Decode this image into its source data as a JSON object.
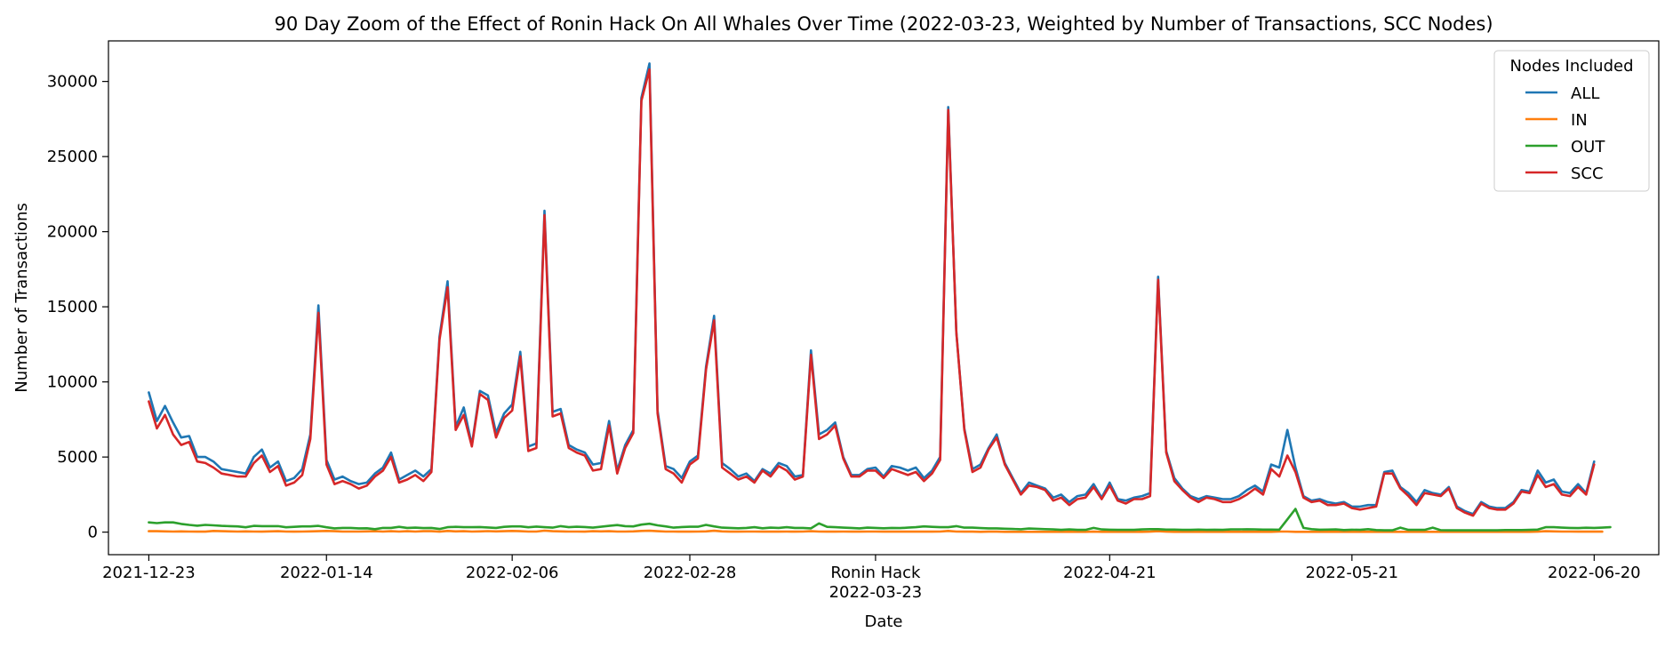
{
  "chart_data": {
    "type": "line",
    "title": "90 Day Zoom of the Effect of Ronin Hack On All Whales Over Time (2022-03-23, Weighted by Number of Transactions, SCC Nodes)",
    "xlabel": "Date",
    "ylabel": "Number of Transactions",
    "x_start": "2021-12-23",
    "x_end": "2022-06-20",
    "xlim": [
      "2021-12-18",
      "2022-06-28"
    ],
    "ylim": [
      -1500,
      32700
    ],
    "x_ticks": [
      {
        "date": "2021-12-23",
        "label": "2021-12-23"
      },
      {
        "date": "2022-01-14",
        "label": "2022-01-14"
      },
      {
        "date": "2022-02-06",
        "label": "2022-02-06"
      },
      {
        "date": "2022-02-28",
        "label": "2022-02-28"
      },
      {
        "date": "2022-03-23",
        "label": "Ronin Hack\n2022-03-23"
      },
      {
        "date": "2022-04-21",
        "label": "2022-04-21"
      },
      {
        "date": "2022-05-21",
        "label": "2022-05-21"
      },
      {
        "date": "2022-06-20",
        "label": "2022-06-20"
      }
    ],
    "y_ticks": [
      0,
      5000,
      10000,
      15000,
      20000,
      25000,
      30000
    ],
    "grid": false,
    "legend": {
      "title": "Nodes Included",
      "placement": "top-right"
    },
    "series": [
      {
        "name": "ALL",
        "color": "#1f77b4",
        "values": [
          9300,
          7400,
          8400,
          7300,
          6300,
          6400,
          5000,
          5000,
          4700,
          4200,
          4100,
          4000,
          3900,
          5000,
          5500,
          4300,
          4700,
          3400,
          3600,
          4200,
          6500,
          15100,
          4800,
          3500,
          3700,
          3400,
          3200,
          3300,
          3900,
          4300,
          5300,
          3500,
          3800,
          4100,
          3700,
          4200,
          13000,
          16700,
          7000,
          8300,
          5800,
          9400,
          9100,
          6600,
          7900,
          8500,
          12000,
          5700,
          5900,
          21400,
          8000,
          8200,
          5800,
          5500,
          5300,
          4500,
          4600,
          7400,
          4100,
          5800,
          6800,
          28900,
          31200,
          8100,
          4400,
          4200,
          3600,
          4700,
          5100,
          11000,
          14400,
          4600,
          4200,
          3700,
          3900,
          3400,
          4200,
          3900,
          4600,
          4400,
          3700,
          3800,
          12100,
          6500,
          6800,
          7300,
          5000,
          3800,
          3800,
          4200,
          4300,
          3700,
          4400,
          4300,
          4100,
          4300,
          3600,
          4100,
          5000,
          28300,
          13300,
          6900,
          4200,
          4500,
          5600,
          6500,
          4600,
          3600,
          2600,
          3300,
          3100,
          2900,
          2300,
          2500,
          2000,
          2400,
          2500,
          3200,
          2300,
          3300,
          2200,
          2100,
          2300,
          2400,
          2600,
          17000,
          5400,
          3600,
          2900,
          2400,
          2200,
          2400,
          2300,
          2200,
          2200,
          2400,
          2800,
          3100,
          2700,
          4500,
          4300,
          6800,
          4300,
          2400,
          2100,
          2200,
          2000,
          1900,
          2000,
          1700,
          1700,
          1800,
          1800,
          4000,
          4100,
          3000,
          2600,
          2000,
          2800,
          2600,
          2500,
          3000,
          1700,
          1400,
          1200,
          2000,
          1700,
          1600,
          1600,
          2000,
          2800,
          2700,
          4100,
          3300,
          3500,
          2700,
          2600,
          3200,
          2600,
          4700
        ]
      },
      {
        "name": "IN",
        "color": "#ff7f0e",
        "values": [
          60,
          60,
          50,
          40,
          50,
          40,
          30,
          30,
          80,
          60,
          50,
          40,
          50,
          40,
          30,
          50,
          60,
          40,
          30,
          40,
          50,
          60,
          80,
          60,
          40,
          40,
          40,
          50,
          60,
          40,
          60,
          40,
          60,
          40,
          60,
          60,
          30,
          80,
          50,
          60,
          40,
          50,
          70,
          50,
          60,
          80,
          60,
          40,
          40,
          100,
          60,
          50,
          40,
          40,
          30,
          60,
          50,
          60,
          40,
          40,
          50,
          80,
          90,
          60,
          40,
          40,
          30,
          30,
          40,
          50,
          90,
          50,
          30,
          30,
          40,
          40,
          30,
          30,
          30,
          40,
          30,
          40,
          60,
          40,
          30,
          30,
          40,
          30,
          30,
          40,
          40,
          30,
          30,
          30,
          30,
          30,
          30,
          30,
          40,
          80,
          40,
          30,
          30,
          20,
          30,
          30,
          20,
          20,
          20,
          20,
          20,
          20,
          20,
          20,
          20,
          20,
          20,
          30,
          20,
          20,
          20,
          20,
          20,
          20,
          30,
          60,
          30,
          20,
          20,
          20,
          20,
          20,
          20,
          20,
          20,
          20,
          20,
          20,
          20,
          20,
          40,
          40,
          20,
          20,
          20,
          20,
          20,
          20,
          20,
          20,
          20,
          20,
          20,
          20,
          20,
          20,
          20,
          20,
          20,
          20,
          20,
          20,
          20,
          20,
          20,
          20,
          20,
          20,
          20,
          20,
          20,
          20,
          30,
          60,
          50,
          40,
          40,
          30,
          30,
          30,
          30
        ]
      },
      {
        "name": "OUT",
        "color": "#2ca02c",
        "values": [
          650,
          600,
          650,
          650,
          550,
          480,
          430,
          480,
          450,
          420,
          400,
          380,
          320,
          420,
          400,
          400,
          400,
          320,
          350,
          380,
          380,
          420,
          320,
          250,
          280,
          280,
          250,
          260,
          200,
          280,
          280,
          350,
          280,
          300,
          270,
          280,
          210,
          330,
          350,
          330,
          330,
          340,
          310,
          280,
          350,
          380,
          380,
          320,
          370,
          330,
          300,
          400,
          330,
          360,
          340,
          300,
          360,
          420,
          470,
          400,
          380,
          500,
          560,
          450,
          380,
          300,
          340,
          360,
          360,
          480,
          380,
          300,
          280,
          260,
          280,
          330,
          260,
          300,
          280,
          330,
          280,
          280,
          250,
          580,
          350,
          330,
          300,
          280,
          250,
          300,
          280,
          260,
          280,
          270,
          300,
          330,
          380,
          350,
          330,
          330,
          400,
          300,
          300,
          270,
          250,
          250,
          230,
          210,
          190,
          240,
          220,
          200,
          180,
          150,
          180,
          150,
          150,
          280,
          180,
          160,
          150,
          150,
          150,
          180,
          200,
          200,
          170,
          170,
          150,
          150,
          170,
          150,
          160,
          150,
          180,
          180,
          190,
          180,
          170,
          170,
          160,
          850,
          1550,
          280,
          200,
          160,
          170,
          180,
          140,
          160,
          150,
          200,
          140,
          120,
          120,
          300,
          150,
          150,
          150,
          300,
          130,
          120,
          120,
          120,
          120,
          120,
          120,
          120,
          140,
          140,
          140,
          150,
          170,
          330,
          330,
          300,
          280,
          270,
          290,
          280,
          300,
          330
        ]
      },
      {
        "name": "SCC",
        "color": "#d62728",
        "values": [
          8700,
          6900,
          7800,
          6500,
          5800,
          6000,
          4700,
          4600,
          4300,
          3900,
          3800,
          3700,
          3700,
          4600,
          5100,
          4000,
          4400,
          3100,
          3300,
          3800,
          6200,
          14600,
          4500,
          3200,
          3400,
          3200,
          2900,
          3100,
          3700,
          4100,
          5000,
          3300,
          3500,
          3800,
          3400,
          4000,
          12800,
          16300,
          6800,
          7800,
          5700,
          9200,
          8800,
          6300,
          7600,
          8100,
          11700,
          5400,
          5600,
          21100,
          7700,
          7900,
          5600,
          5300,
          5100,
          4100,
          4200,
          7100,
          3900,
          5600,
          6600,
          28700,
          30800,
          7900,
          4200,
          3900,
          3300,
          4500,
          4900,
          10800,
          14100,
          4300,
          3900,
          3500,
          3700,
          3300,
          4100,
          3700,
          4400,
          4100,
          3500,
          3700,
          11800,
          6200,
          6500,
          7100,
          4900,
          3700,
          3700,
          4100,
          4100,
          3600,
          4200,
          4000,
          3800,
          4000,
          3400,
          3900,
          4800,
          28100,
          13300,
          6800,
          4000,
          4300,
          5500,
          6300,
          4500,
          3500,
          2500,
          3100,
          3000,
          2800,
          2100,
          2300,
          1800,
          2200,
          2300,
          3000,
          2200,
          3100,
          2100,
          1900,
          2200,
          2200,
          2400,
          16800,
          5300,
          3400,
          2800,
          2300,
          2000,
          2300,
          2200,
          2000,
          2000,
          2200,
          2500,
          2900,
          2500,
          4200,
          3700,
          5100,
          4000,
          2300,
          2000,
          2100,
          1800,
          1800,
          1900,
          1600,
          1500,
          1600,
          1700,
          3900,
          3900,
          2900,
          2400,
          1800,
          2600,
          2500,
          2400,
          2900,
          1600,
          1300,
          1100,
          1900,
          1600,
          1500,
          1500,
          1900,
          2700,
          2600,
          3800,
          3000,
          3200,
          2500,
          2400,
          3000,
          2500,
          4500
        ]
      }
    ]
  }
}
